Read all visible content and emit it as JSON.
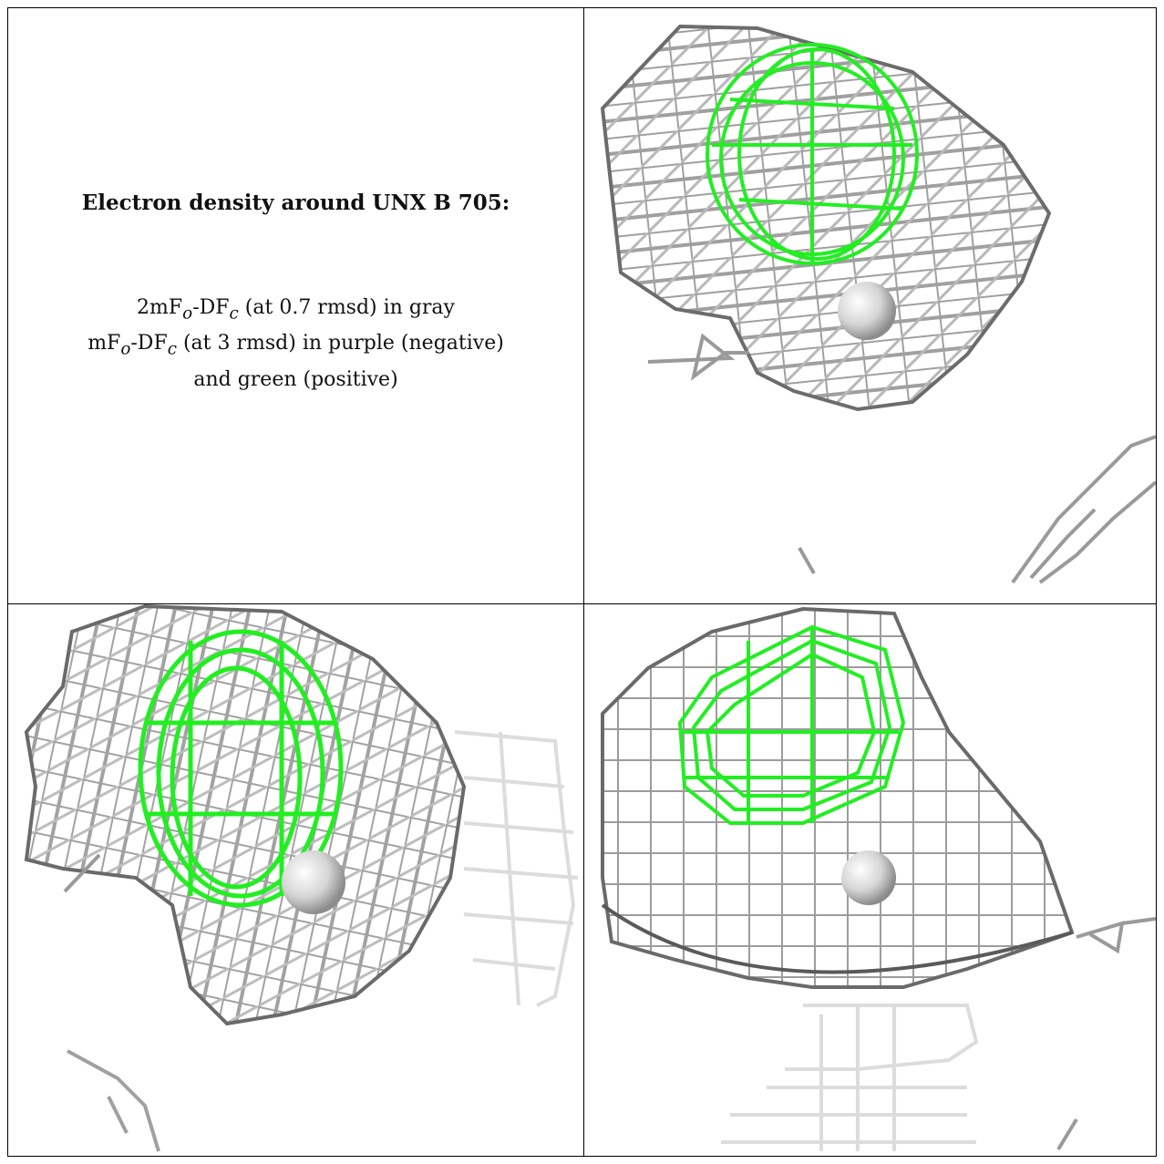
{
  "caption": {
    "heading": "Electron density around UNX B 705:",
    "line1": {
      "pre": "2mF",
      "sub1": "o",
      "mid": "-DF",
      "sub2": "c",
      "post": " (at 0.7 rmsd) in gray"
    },
    "line2": {
      "pre": "mF",
      "sub1": "o",
      "mid": "-DF",
      "sub2": "c",
      "post": " (at 3 rmsd) in purple (negative)"
    },
    "line3": "and green (positive)"
  },
  "colors": {
    "map_2fofc": "#a8a8a8",
    "map_2fofc_dark": "#606060",
    "map_fofc_positive": "#22ee22",
    "map_fofc_negative": "#8b3fbf",
    "atom": "#d0d0d0",
    "border": "#000000"
  },
  "panels": [
    {
      "id": "view-1",
      "content": "mesh view 1"
    },
    {
      "id": "view-2",
      "content": "mesh view 2"
    },
    {
      "id": "view-3",
      "content": "mesh view 3"
    }
  ]
}
